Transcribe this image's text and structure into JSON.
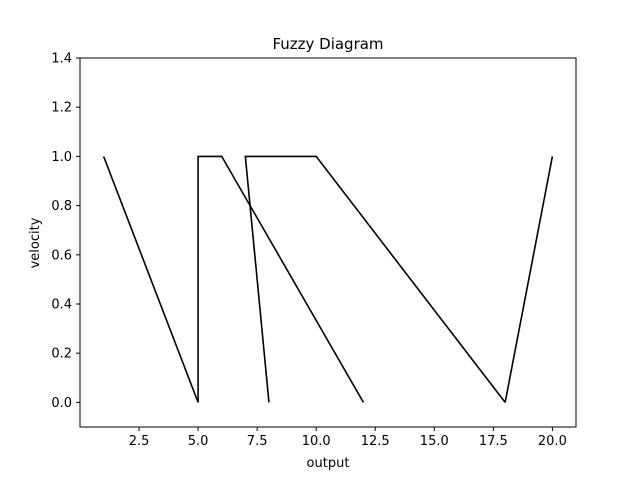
{
  "chart_data": {
    "type": "line",
    "title": "Fuzzy Diagram",
    "xlabel": "output",
    "ylabel": "velocity",
    "xlim": [
      0,
      21
    ],
    "ylim": [
      -0.1,
      1.4
    ],
    "xticks": [
      2.5,
      5.0,
      7.5,
      10.0,
      12.5,
      15.0,
      17.5,
      20.0
    ],
    "xtick_labels": [
      "2.5",
      "5.0",
      "7.5",
      "10.0",
      "12.5",
      "15.0",
      "17.5",
      "20.0"
    ],
    "yticks": [
      0.0,
      0.2,
      0.4,
      0.6,
      0.8,
      1.0,
      1.2,
      1.4
    ],
    "ytick_labels": [
      "0.0",
      "0.2",
      "0.4",
      "0.6",
      "0.8",
      "1.0",
      "1.2",
      "1.4"
    ],
    "grid": false,
    "legend": false,
    "line_color": "#000000",
    "series": [
      {
        "x": [
          1,
          5
        ],
        "y": [
          1,
          0
        ]
      },
      {
        "x": [
          5,
          5,
          6,
          12
        ],
        "y": [
          0,
          1,
          1,
          0
        ]
      },
      {
        "x": [
          8,
          7,
          10,
          18
        ],
        "y": [
          0,
          1,
          1,
          0
        ]
      },
      {
        "x": [
          18,
          20
        ],
        "y": [
          0,
          1
        ]
      }
    ]
  }
}
